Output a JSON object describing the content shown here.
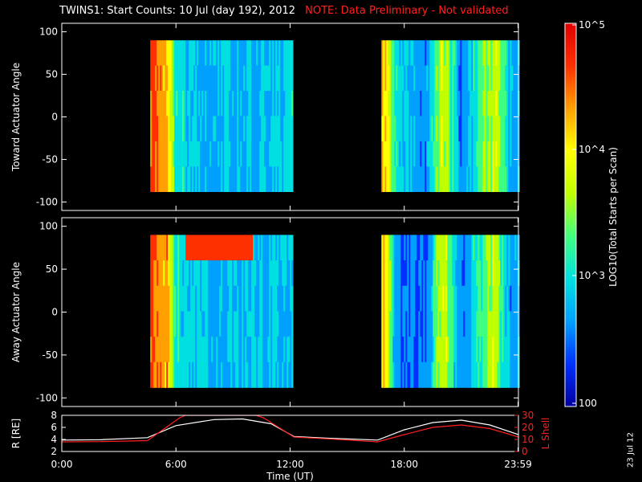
{
  "title": "TWINS1: Start Counts: 10 Jul (day 192), 2012",
  "note": "NOTE: Data Preliminary - Not validated",
  "side_date": "23 Jul 12",
  "colorbar": {
    "label": "LOG10(Total Starts per Scan)",
    "tick_labels": [
      "10^5",
      "10^4",
      "10^3",
      "100"
    ],
    "tick_values": [
      100000,
      10000,
      1000,
      100
    ],
    "colors": [
      "#0000a0",
      "#0030ff",
      "#00a0ff",
      "#00e0e0",
      "#40ff80",
      "#c0ff00",
      "#ffff00",
      "#ffa000",
      "#ff3000",
      "#e00000"
    ]
  },
  "chart_data": [
    {
      "type": "heatmap",
      "name": "toward",
      "ylabel": "Toward Actuator Angle",
      "ylim": [
        -110,
        110
      ],
      "yticks": [
        100,
        50,
        0,
        -50,
        -100
      ],
      "xlim": [
        0,
        24
      ],
      "data_gaps": [
        [
          0,
          4.65
        ],
        [
          12.1,
          16.8
        ]
      ],
      "data_ranges": [
        [
          4.65,
          12.1
        ],
        [
          16.8,
          24
        ]
      ],
      "angle_range": [
        -88,
        90
      ],
      "column_log_counts": [
        {
          "t": 4.7,
          "v": 4.6
        },
        {
          "t": 5.1,
          "v": 4.5
        },
        {
          "t": 5.5,
          "v": 4.3
        },
        {
          "t": 5.9,
          "v": 3.2
        },
        {
          "t": 6.5,
          "v": 2.9
        },
        {
          "t": 8.0,
          "v": 2.8
        },
        {
          "t": 10.0,
          "v": 2.8
        },
        {
          "t": 11.8,
          "v": 2.9
        },
        {
          "t": 17.0,
          "v": 4.2
        },
        {
          "t": 17.5,
          "v": 3.0
        },
        {
          "t": 19.0,
          "v": 2.5
        },
        {
          "t": 20.0,
          "v": 3.8
        },
        {
          "t": 21.0,
          "v": 2.5
        },
        {
          "t": 22.7,
          "v": 3.8
        },
        {
          "t": 23.5,
          "v": 2.8
        }
      ]
    },
    {
      "type": "heatmap",
      "name": "away",
      "ylabel": "Away Actuator Angle",
      "ylim": [
        -110,
        110
      ],
      "yticks": [
        100,
        50,
        0,
        -50,
        -100
      ],
      "xlim": [
        0,
        24
      ],
      "data_gaps": [
        [
          0,
          4.65
        ],
        [
          12.1,
          16.8
        ]
      ],
      "data_ranges": [
        [
          4.65,
          12.1
        ],
        [
          16.8,
          24
        ]
      ],
      "angle_range": [
        -88,
        90
      ],
      "column_log_counts": [
        {
          "t": 4.7,
          "v": 4.6
        },
        {
          "t": 5.1,
          "v": 4.5
        },
        {
          "t": 5.5,
          "v": 4.3
        },
        {
          "t": 5.9,
          "v": 3.0
        },
        {
          "t": 6.5,
          "v": 2.9
        },
        {
          "t": 8.0,
          "v": 2.8
        },
        {
          "t": 10.0,
          "v": 2.8
        },
        {
          "t": 11.8,
          "v": 2.9
        },
        {
          "t": 17.0,
          "v": 4.2
        },
        {
          "t": 17.5,
          "v": 2.6
        },
        {
          "t": 19.0,
          "v": 2.4
        },
        {
          "t": 20.0,
          "v": 3.8
        },
        {
          "t": 21.0,
          "v": 2.4
        },
        {
          "t": 22.7,
          "v": 3.8
        },
        {
          "t": 23.5,
          "v": 2.7
        }
      ]
    },
    {
      "type": "line",
      "name": "orbit",
      "xlabel": "Time (UT)",
      "x_ticks": [
        "0:00",
        "6:00",
        "12:00",
        "18:00",
        "23:59"
      ],
      "x_tick_values": [
        0,
        6,
        12,
        18,
        23.98
      ],
      "ylabel_left": "R [RE]",
      "ylim_left": [
        2,
        8
      ],
      "yticks_left": [
        2,
        4,
        6,
        8
      ],
      "ylabel_right": "L Shell",
      "ylim_right": [
        0,
        30
      ],
      "yticks_right": [
        0,
        10,
        20,
        30
      ],
      "series": [
        {
          "color": "#ffffff",
          "axis": "left",
          "x": [
            0,
            2,
            4.5,
            6,
            8,
            9.5,
            11,
            12.2,
            14,
            16.6,
            18,
            19.5,
            21,
            22.5,
            24
          ],
          "y": [
            3.9,
            3.95,
            4.3,
            6.3,
            7.3,
            7.4,
            6.6,
            4.5,
            4.2,
            3.9,
            5.6,
            6.8,
            7.2,
            6.4,
            4.8
          ]
        },
        {
          "color": "#ff2020",
          "axis": "right",
          "x": [
            0,
            2,
            4.5,
            6.2,
            6.5,
            10.2,
            10.6,
            12.2,
            14,
            16.6,
            18,
            19.5,
            21,
            22.5,
            24
          ],
          "y": [
            8.0,
            8.2,
            9.0,
            28.0,
            30.0,
            30.0,
            28.0,
            12.0,
            10.5,
            8.0,
            14.0,
            20.0,
            22.0,
            19.0,
            12.0
          ]
        }
      ]
    }
  ]
}
